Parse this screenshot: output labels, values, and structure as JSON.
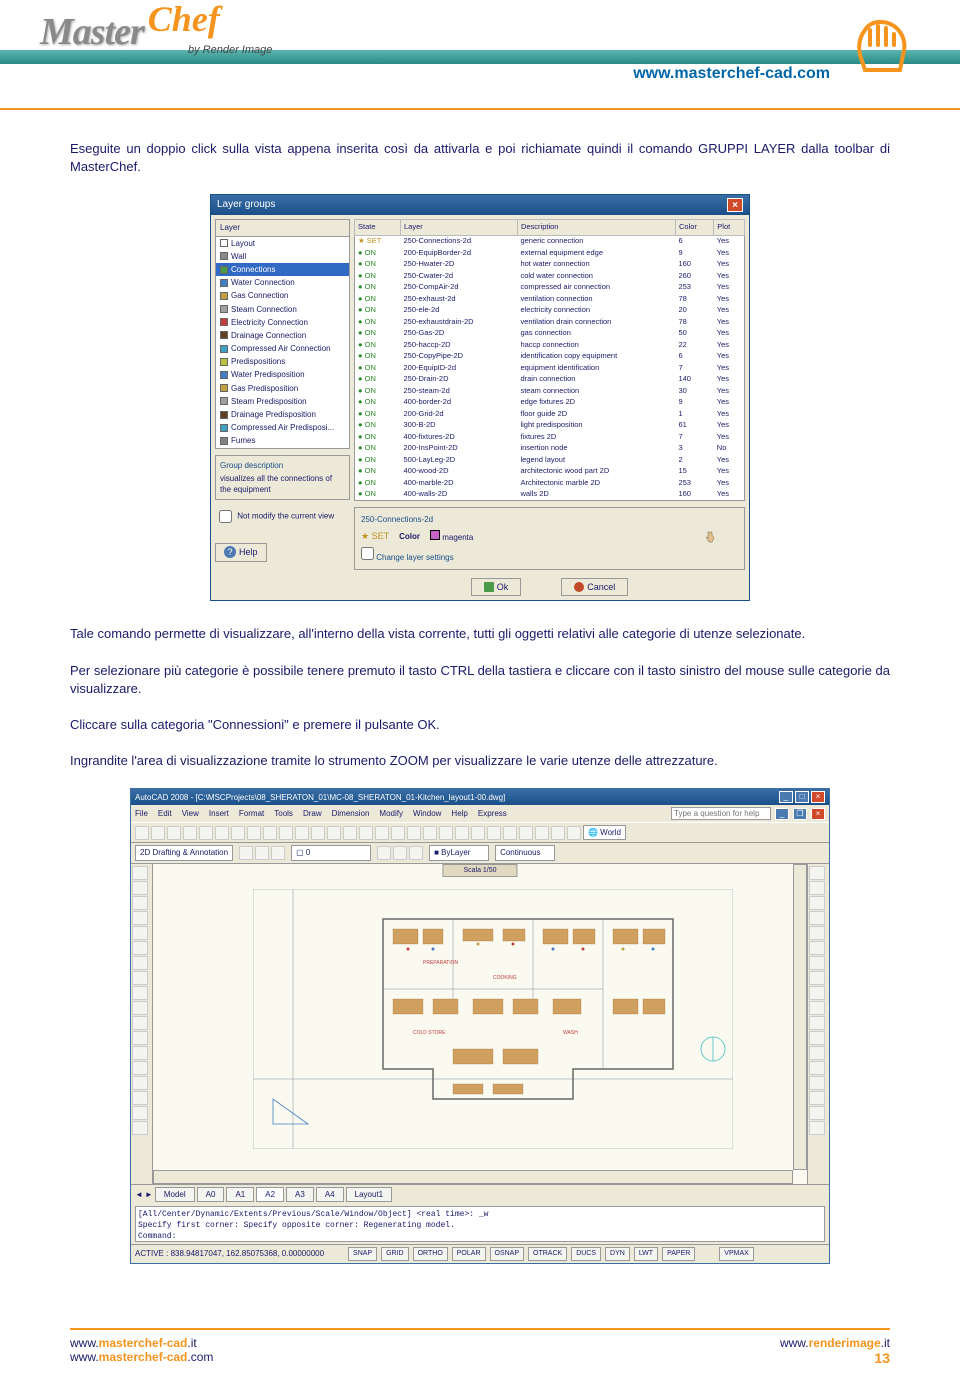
{
  "header": {
    "logo_master": "Master",
    "logo_chef": "Chef",
    "byline": "by Render Image",
    "url": "www.masterchef-cad.com"
  },
  "body": {
    "para1": "Eseguite un doppio click sulla vista appena inserita così da attivarla e poi richiamate quindi il comando GRUPPI LAYER dalla toolbar di MasterChef.",
    "para2": "Tale comando permette di visualizzare, all'interno della vista corrente, tutti gli oggetti relativi alle categorie di utenze selezionate.",
    "para3": "Per selezionare più categorie è possibile tenere premuto il tasto CTRL della tastiera e cliccare con il tasto sinistro del mouse sulle categorie da visualizzare.",
    "para4": "Cliccare sulla categoria \"Connessioni\" e premere il pulsante OK.",
    "para5": "Ingrandite l'area di visualizzazione tramite lo strumento ZOOM per visualizzare le varie utenze delle attrezzature."
  },
  "dialog": {
    "title": "Layer groups",
    "layer_header": "Layer",
    "layers": [
      {
        "name": "Layout",
        "color": "#ffffff"
      },
      {
        "name": "Wall",
        "color": "#888888"
      },
      {
        "name": "Connections",
        "color": "#4a9a4a",
        "selected": true
      },
      {
        "name": "Water Connection",
        "color": "#4080c0"
      },
      {
        "name": "Gas Connection",
        "color": "#c0a040"
      },
      {
        "name": "Steam Connection",
        "color": "#a0a0a0"
      },
      {
        "name": "Electricity Connection",
        "color": "#c04040"
      },
      {
        "name": "Drainage Connection",
        "color": "#604020"
      },
      {
        "name": "Compressed Air Connection",
        "color": "#40a0c0"
      },
      {
        "name": "Predispositions",
        "color": "#c0c040"
      },
      {
        "name": "Water Predisposition",
        "color": "#4080c0"
      },
      {
        "name": "Gas Predisposition",
        "color": "#c0a040"
      },
      {
        "name": "Steam Predisposition",
        "color": "#a0a0a0"
      },
      {
        "name": "Drainage Predisposition",
        "color": "#604020"
      },
      {
        "name": "Compressed Air Predisposi...",
        "color": "#40a0c0"
      },
      {
        "name": "Fumes",
        "color": "#808080"
      }
    ],
    "group_desc_title": "Group description",
    "group_desc_text": "visualizes all the connections of the equipment",
    "checkbox_label": "Not modify the current view",
    "help_label": "Help",
    "table_headers": [
      "State",
      "Layer",
      "Description",
      "Color",
      "Plot"
    ],
    "table_rows": [
      [
        "SET",
        "250-Connections-2d",
        "generic connection",
        "6",
        "Yes"
      ],
      [
        "ON",
        "200-EquipBorder-2d",
        "external equipment edge",
        "9",
        "Yes"
      ],
      [
        "ON",
        "250-Hwater-2D",
        "hot water connection",
        "160",
        "Yes"
      ],
      [
        "ON",
        "250-Cwater-2d",
        "cold water connection",
        "260",
        "Yes"
      ],
      [
        "ON",
        "250-CompAir-2d",
        "compressed air connection",
        "253",
        "Yes"
      ],
      [
        "ON",
        "250-exhaust-2d",
        "ventilation connection",
        "78",
        "Yes"
      ],
      [
        "ON",
        "250-ele-2d",
        "electricity connection",
        "20",
        "Yes"
      ],
      [
        "ON",
        "250-exhaustdrain-2D",
        "ventilation drain connection",
        "78",
        "Yes"
      ],
      [
        "ON",
        "250-Gas-2D",
        "gas connection",
        "50",
        "Yes"
      ],
      [
        "ON",
        "250-haccp-2D",
        "haccp connection",
        "22",
        "Yes"
      ],
      [
        "ON",
        "250-CopyPipe-2D",
        "identification copy equipment",
        "6",
        "Yes"
      ],
      [
        "ON",
        "200-EquipID-2d",
        "equipment identification",
        "7",
        "Yes"
      ],
      [
        "ON",
        "250-Drain-2D",
        "drain connection",
        "140",
        "Yes"
      ],
      [
        "ON",
        "250-steam-2d",
        "steam connection",
        "30",
        "Yes"
      ],
      [
        "ON",
        "400-border-2d",
        "edge fixtures 2D",
        "9",
        "Yes"
      ],
      [
        "ON",
        "200-Grid-2d",
        "floor guide 2D",
        "1",
        "Yes"
      ],
      [
        "ON",
        "300-B-2D",
        "light predisposition",
        "61",
        "Yes"
      ],
      [
        "ON",
        "400-fixtures-2D",
        "fixtures 2D",
        "7",
        "Yes"
      ],
      [
        "ON",
        "200-InsPoint-2D",
        "insertion node",
        "3",
        "No"
      ],
      [
        "ON",
        "500-LayLeg-2D",
        "legend layout",
        "2",
        "Yes"
      ],
      [
        "ON",
        "400-wood-2D",
        "architectonic wood part 2D",
        "15",
        "Yes"
      ],
      [
        "ON",
        "400-marble-2D",
        "Architectonic marble 2D",
        "253",
        "Yes"
      ],
      [
        "ON",
        "400-walls-2D",
        "walls 2D",
        "160",
        "Yes"
      ]
    ],
    "settings_title": "250-Connections-2d",
    "set_label": "SET",
    "color_label": "Color",
    "color_name": "magenta",
    "change_checkbox": "Change layer settings",
    "ok_label": "Ok",
    "cancel_label": "Cancel"
  },
  "acad": {
    "title": "AutoCAD 2008 - [C:\\MSCProjects\\08_SHERATON_01\\MC-08_SHERATON_01-Kitchen_layout1-00.dwg]",
    "menu": [
      "File",
      "Edit",
      "View",
      "Insert",
      "Format",
      "Tools",
      "Draw",
      "Dimension",
      "Modify",
      "Window",
      "Help",
      "Express"
    ],
    "search_placeholder": "Type a question for help",
    "annotation_label": "2D Drafting & Annotation",
    "layer_state": "0",
    "world_label": "World",
    "bylayer": "ByLayer",
    "linetype": "Continuous",
    "canvas_tab": "Scala 1/50",
    "tabs_prefix": "Model",
    "tabs": [
      "A0",
      "A1",
      "A2",
      "A3",
      "A4",
      "Layout1"
    ],
    "cmd_lines": [
      "[All/Center/Dynamic/Extents/Previous/Scale/Window/Object] <real time>: _w",
      "Specify first corner: Specify opposite corner: Regenerating model."
    ],
    "cmd_prompt": "Command:",
    "coords": "ACTIVE : 838.94817047, 162.85075368, 0.00000000",
    "status_buttons": [
      "SNAP",
      "GRID",
      "ORTHO",
      "POLAR",
      "OSNAP",
      "OTRACK",
      "DUCS",
      "DYN",
      "LWT",
      "PAPER"
    ],
    "vpmax": "VPMAX"
  },
  "footer": {
    "left1_pre": "www.",
    "left1_b": "masterchef-cad",
    "left1_post": ".it",
    "left2_pre": "www.",
    "left2_b": "masterchef-cad",
    "left2_post": ".com",
    "right1_pre": "www.",
    "right1_b": "renderimage",
    "right1_post": ".it",
    "page_num": "13"
  }
}
